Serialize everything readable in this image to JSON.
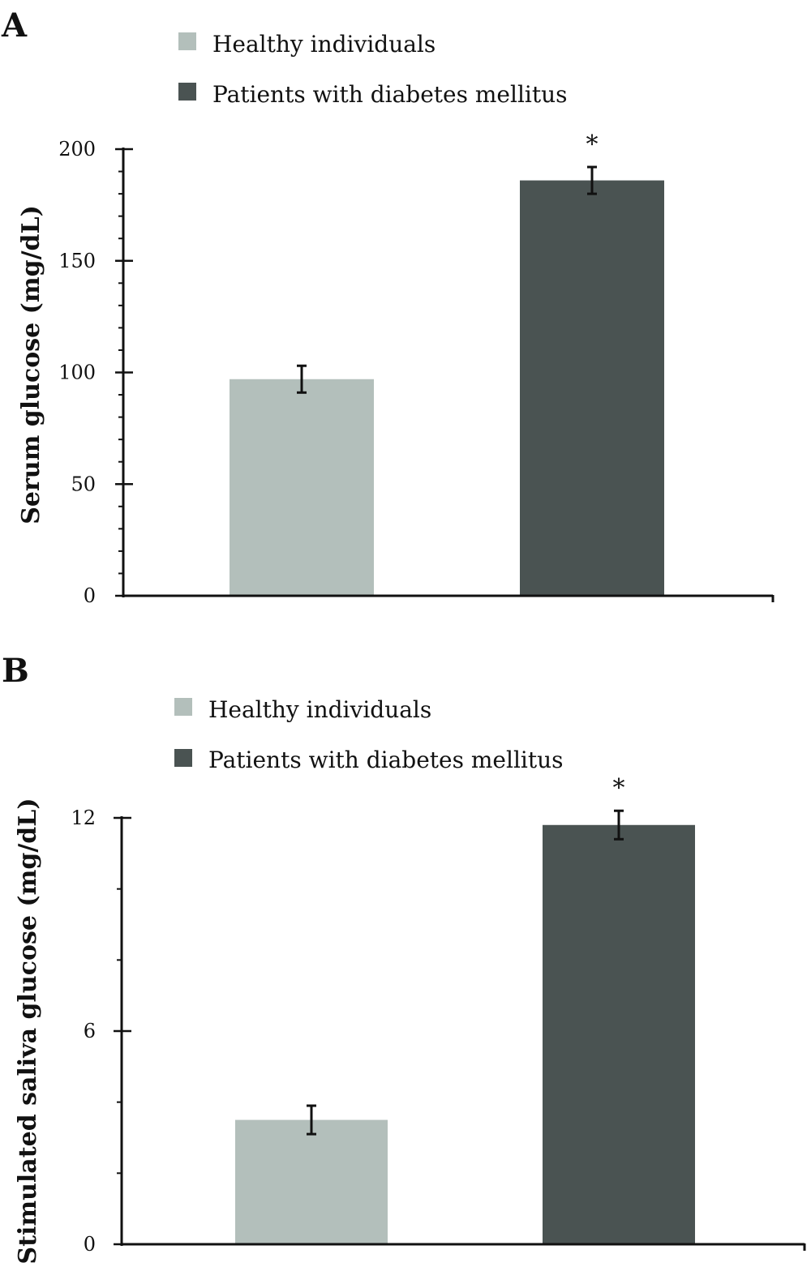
{
  "chart_data": [
    {
      "type": "bar",
      "panel_label": "A",
      "categories": [
        "Healthy individuals",
        "Patients with diabetes mellitus"
      ],
      "values": [
        97,
        186
      ],
      "errors": [
        6,
        6
      ],
      "colors": [
        "#b3bfbb",
        "#4a5352"
      ],
      "annotations": [
        "",
        "*"
      ],
      "legend": [
        "Healthy individuals",
        "Patients with diabetes mellitus"
      ],
      "legend_placement": "top",
      "ylabel": "Serum glucose (mg/dL)",
      "ylim": [
        0,
        200
      ],
      "yticks": [
        0,
        50,
        100,
        150,
        200
      ],
      "minor_tick_step": 10,
      "grid": false
    },
    {
      "type": "bar",
      "panel_label": "B",
      "categories": [
        "Healthy individuals",
        "Patients with diabetes mellitus"
      ],
      "values": [
        3.5,
        11.8
      ],
      "errors": [
        0.4,
        0.4
      ],
      "colors": [
        "#b3bfbb",
        "#4a5352"
      ],
      "annotations": [
        "",
        "*"
      ],
      "legend": [
        "Healthy individuals",
        "Patients with diabetes mellitus"
      ],
      "legend_placement": "top",
      "ylabel": "Stimulated saliva glucose (mg/dL)",
      "ylim": [
        0,
        12
      ],
      "yticks": [
        0,
        6,
        12
      ],
      "minor_tick_step": 2,
      "grid": false
    }
  ]
}
